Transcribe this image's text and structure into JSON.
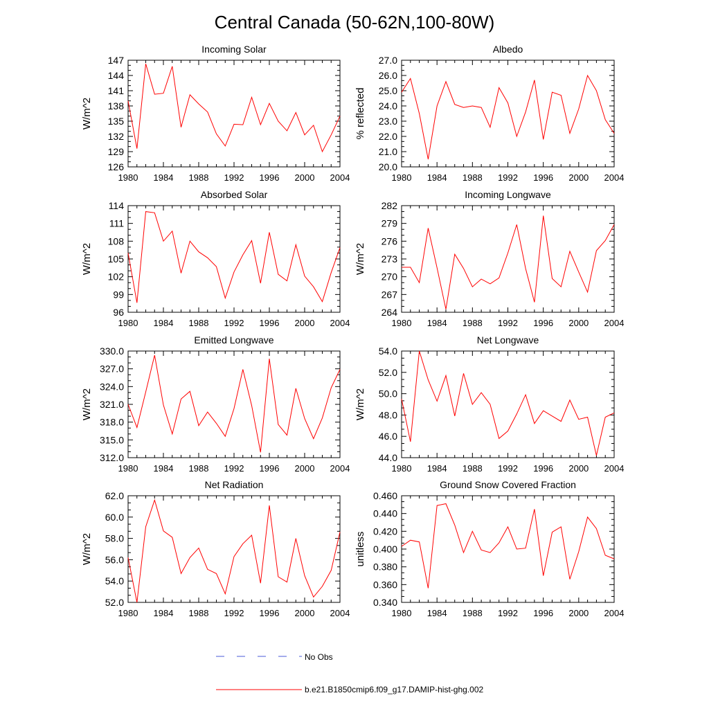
{
  "title": "Central Canada (50-62N,100-80W)",
  "legend": {
    "items": [
      {
        "label": "No Obs",
        "color": "#4a5ad8",
        "style": "dashed"
      },
      {
        "label": "b.e21.B1850cmip6.f09_g17.DAMIP-hist-ghg.002",
        "color": "#ff0000",
        "style": "solid"
      }
    ]
  },
  "chart_data": [
    {
      "type": "line",
      "title": "Incoming Solar",
      "ylabel": "W/m^2",
      "xlim": [
        1980,
        2004
      ],
      "ylim": [
        126,
        147
      ],
      "yticks": [
        "126",
        "129",
        "132",
        "135",
        "138",
        "141",
        "144",
        "147"
      ],
      "xticks": [
        "1980",
        "1984",
        "1988",
        "1992",
        "1996",
        "2000",
        "2004"
      ],
      "x": [
        1980,
        1981,
        1982,
        1983,
        1984,
        1985,
        1986,
        1987,
        1988,
        1989,
        1990,
        1991,
        1992,
        1993,
        1994,
        1995,
        1996,
        1997,
        1998,
        1999,
        2000,
        2001,
        2002,
        2003,
        2004
      ],
      "series": [
        {
          "name": "b.e21.B1850cmip6.f09_g17.DAMIP-hist-ghg.002",
          "color": "#ff0000",
          "values": [
            139.0,
            129.6,
            146.3,
            140.3,
            140.5,
            145.8,
            133.8,
            140.2,
            138.4,
            136.8,
            132.5,
            130.1,
            134.4,
            134.3,
            139.7,
            134.3,
            138.5,
            135.0,
            133.1,
            136.7,
            132.3,
            134.2,
            129.0,
            132.3,
            136.0
          ]
        }
      ]
    },
    {
      "type": "line",
      "title": "Albedo",
      "ylabel": "% reflected",
      "xlim": [
        1980,
        2004
      ],
      "ylim": [
        20.0,
        27.0
      ],
      "yticks": [
        "20.0",
        "21.0",
        "22.0",
        "23.0",
        "24.0",
        "25.0",
        "26.0",
        "27.0"
      ],
      "xticks": [
        "1980",
        "1984",
        "1988",
        "1992",
        "1996",
        "2000",
        "2004"
      ],
      "x": [
        1980,
        1981,
        1982,
        1983,
        1984,
        1985,
        1986,
        1987,
        1988,
        1989,
        1990,
        1991,
        1992,
        1993,
        1994,
        1995,
        1996,
        1997,
        1998,
        1999,
        2000,
        2001,
        2002,
        2003,
        2004
      ],
      "series": [
        {
          "name": "b.e21.B1850cmip6.f09_g17.DAMIP-hist-ghg.002",
          "color": "#ff0000",
          "values": [
            24.9,
            25.8,
            23.5,
            20.5,
            24.0,
            25.6,
            24.1,
            23.9,
            24.0,
            23.9,
            22.6,
            25.2,
            24.2,
            22.0,
            23.6,
            25.7,
            21.8,
            24.9,
            24.7,
            22.2,
            23.8,
            26.0,
            25.0,
            23.1,
            22.2
          ]
        }
      ]
    },
    {
      "type": "line",
      "title": "Absorbed Solar",
      "ylabel": "W/m^2",
      "xlim": [
        1980,
        2004
      ],
      "ylim": [
        96,
        114
      ],
      "yticks": [
        "96",
        "99",
        "102",
        "105",
        "108",
        "111",
        "114"
      ],
      "xticks": [
        "1980",
        "1984",
        "1988",
        "1992",
        "1996",
        "2000",
        "2004"
      ],
      "x": [
        1980,
        1981,
        1982,
        1983,
        1984,
        1985,
        1986,
        1987,
        1988,
        1989,
        1990,
        1991,
        1992,
        1993,
        1994,
        1995,
        1996,
        1997,
        1998,
        1999,
        2000,
        2001,
        2002,
        2003,
        2004
      ],
      "series": [
        {
          "name": "b.e21.B1850cmip6.f09_g17.DAMIP-hist-ghg.002",
          "color": "#ff0000",
          "values": [
            106.0,
            97.6,
            113.0,
            112.8,
            108.0,
            109.7,
            102.6,
            108.0,
            106.2,
            105.2,
            103.7,
            98.4,
            102.8,
            105.7,
            108.1,
            100.9,
            109.5,
            102.4,
            101.3,
            107.4,
            102.1,
            100.3,
            97.8,
            102.7,
            106.9
          ]
        }
      ]
    },
    {
      "type": "line",
      "title": "Incoming Longwave",
      "ylabel": "W/m^2",
      "xlim": [
        1980,
        2004
      ],
      "ylim": [
        264,
        282
      ],
      "yticks": [
        "264",
        "267",
        "270",
        "273",
        "276",
        "279",
        "282"
      ],
      "xticks": [
        "1980",
        "1984",
        "1988",
        "1992",
        "1996",
        "2000",
        "2004"
      ],
      "x": [
        1980,
        1981,
        1982,
        1983,
        1984,
        1985,
        1986,
        1987,
        1988,
        1989,
        1990,
        1991,
        1992,
        1993,
        1994,
        1995,
        1996,
        1997,
        1998,
        1999,
        2000,
        2001,
        2002,
        2003,
        2004
      ],
      "series": [
        {
          "name": "b.e21.B1850cmip6.f09_g17.DAMIP-hist-ghg.002",
          "color": "#ff0000",
          "values": [
            271.6,
            271.6,
            269.0,
            278.2,
            271.5,
            264.5,
            273.8,
            271.4,
            268.3,
            269.6,
            268.8,
            269.8,
            274.0,
            278.8,
            271.4,
            265.7,
            280.3,
            269.7,
            268.3,
            274.3,
            270.8,
            267.4,
            274.4,
            276.1,
            278.8
          ]
        }
      ]
    },
    {
      "type": "line",
      "title": "Emitted Longwave",
      "ylabel": "W/m^2",
      "xlim": [
        1980,
        2004
      ],
      "ylim": [
        312.0,
        330.0
      ],
      "yticks": [
        "312.0",
        "315.0",
        "318.0",
        "321.0",
        "324.0",
        "327.0",
        "330.0"
      ],
      "xticks": [
        "1980",
        "1984",
        "1988",
        "1992",
        "1996",
        "2000",
        "2004"
      ],
      "x": [
        1980,
        1981,
        1982,
        1983,
        1984,
        1985,
        1986,
        1987,
        1988,
        1989,
        1990,
        1991,
        1992,
        1993,
        1994,
        1995,
        1996,
        1997,
        1998,
        1999,
        2000,
        2001,
        2002,
        2003,
        2004
      ],
      "series": [
        {
          "name": "b.e21.B1850cmip6.f09_g17.DAMIP-hist-ghg.002",
          "color": "#ff0000",
          "values": [
            321.0,
            317.1,
            323.1,
            329.3,
            320.9,
            316.0,
            321.9,
            323.2,
            317.4,
            319.7,
            317.8,
            315.6,
            320.3,
            326.9,
            320.8,
            312.9,
            328.7,
            317.6,
            315.8,
            323.7,
            318.6,
            315.2,
            318.7,
            323.8,
            326.9
          ]
        }
      ]
    },
    {
      "type": "line",
      "title": "Net Longwave",
      "ylabel": "W/m^2",
      "xlim": [
        1980,
        2004
      ],
      "ylim": [
        44.0,
        54.0
      ],
      "yticks": [
        "44.0",
        "46.0",
        "48.0",
        "50.0",
        "52.0",
        "54.0"
      ],
      "xticks": [
        "1980",
        "1984",
        "1988",
        "1992",
        "1996",
        "2000",
        "2004"
      ],
      "x": [
        1980,
        1981,
        1982,
        1983,
        1984,
        1985,
        1986,
        1987,
        1988,
        1989,
        1990,
        1991,
        1992,
        1993,
        1994,
        1995,
        1996,
        1997,
        1998,
        1999,
        2000,
        2001,
        2002,
        2003,
        2004
      ],
      "series": [
        {
          "name": "b.e21.B1850cmip6.f09_g17.DAMIP-hist-ghg.002",
          "color": "#ff0000",
          "values": [
            49.5,
            45.5,
            54.0,
            51.3,
            49.3,
            51.7,
            47.9,
            51.9,
            49.0,
            50.1,
            49.0,
            45.8,
            46.5,
            48.1,
            49.9,
            47.2,
            48.4,
            47.9,
            47.4,
            49.4,
            47.6,
            47.8,
            44.2,
            47.8,
            48.2
          ]
        }
      ]
    },
    {
      "type": "line",
      "title": "Net Radiation",
      "ylabel": "W/m^2",
      "xlim": [
        1980,
        2004
      ],
      "ylim": [
        52.0,
        62.0
      ],
      "yticks": [
        "52.0",
        "54.0",
        "56.0",
        "58.0",
        "60.0",
        "62.0"
      ],
      "xticks": [
        "1980",
        "1984",
        "1988",
        "1992",
        "1996",
        "2000",
        "2004"
      ],
      "x": [
        1980,
        1981,
        1982,
        1983,
        1984,
        1985,
        1986,
        1987,
        1988,
        1989,
        1990,
        1991,
        1992,
        1993,
        1994,
        1995,
        1996,
        1997,
        1998,
        1999,
        2000,
        2001,
        2002,
        2003,
        2004
      ],
      "series": [
        {
          "name": "b.e21.B1850cmip6.f09_g17.DAMIP-hist-ghg.002",
          "color": "#ff0000",
          "values": [
            56.2,
            52.0,
            59.1,
            61.6,
            58.7,
            58.1,
            54.7,
            56.2,
            57.1,
            55.1,
            54.7,
            52.8,
            56.3,
            57.5,
            58.3,
            53.8,
            61.1,
            54.4,
            53.9,
            58.0,
            54.5,
            52.5,
            53.5,
            55.0,
            58.6
          ]
        }
      ]
    },
    {
      "type": "line",
      "title": "Ground Snow Covered Fraction",
      "ylabel": "unitless",
      "xlim": [
        1980,
        2004
      ],
      "ylim": [
        0.34,
        0.46
      ],
      "yticks": [
        "0.340",
        "0.360",
        "0.380",
        "0.400",
        "0.420",
        "0.440",
        "0.460"
      ],
      "xticks": [
        "1980",
        "1984",
        "1988",
        "1992",
        "1996",
        "2000",
        "2004"
      ],
      "x": [
        1980,
        1981,
        1982,
        1983,
        1984,
        1985,
        1986,
        1987,
        1988,
        1989,
        1990,
        1991,
        1992,
        1993,
        1994,
        1995,
        1996,
        1997,
        1998,
        1999,
        2000,
        2001,
        2002,
        2003,
        2004
      ],
      "series": [
        {
          "name": "b.e21.B1850cmip6.f09_g17.DAMIP-hist-ghg.002",
          "color": "#ff0000",
          "values": [
            0.403,
            0.41,
            0.408,
            0.356,
            0.449,
            0.451,
            0.427,
            0.396,
            0.42,
            0.399,
            0.396,
            0.407,
            0.425,
            0.4,
            0.401,
            0.445,
            0.37,
            0.419,
            0.425,
            0.366,
            0.397,
            0.436,
            0.423,
            0.393,
            0.389
          ]
        }
      ]
    }
  ]
}
